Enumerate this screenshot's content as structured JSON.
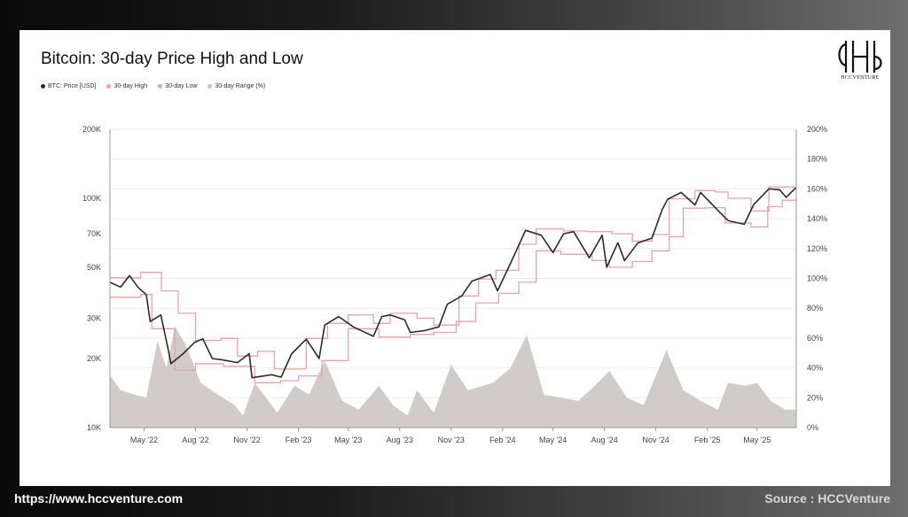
{
  "title": "Bitcoin: 30-day Price High and Low",
  "logo_text": "HCCVENTURE",
  "footer": {
    "url": "https://www.hccventure.com",
    "source": "Source : HCCVenture"
  },
  "colors": {
    "price": "#2b2b2b",
    "high": "#e8a3a6",
    "low": "#e8a3a6",
    "range": "#c9c2c0"
  },
  "chart_data": {
    "type": "line",
    "title": "Bitcoin: 30-day Price High and Low",
    "legend_placement": "top-left",
    "grid": true,
    "legend": [
      {
        "label": "BTC: Price [USD]",
        "color": "#2b2b2b"
      },
      {
        "label": "30-day High",
        "color": "#e8a3a6"
      },
      {
        "label": "30-day Low",
        "color": "#e8a3a6"
      },
      {
        "label": "30-day Range (%)",
        "color": "#c9c2c0"
      }
    ],
    "y_left": {
      "scale": "log",
      "ticks": [
        10000,
        20000,
        30000,
        50000,
        70000,
        100000,
        200000
      ],
      "tick_labels": [
        "10K",
        "20K",
        "30K",
        "50K",
        "70K",
        "100K",
        "200K"
      ],
      "range": [
        10000,
        200000
      ]
    },
    "y_right": {
      "scale": "linear",
      "ticks": [
        0,
        20,
        40,
        60,
        80,
        100,
        120,
        140,
        160,
        180,
        200
      ],
      "tick_labels": [
        "0%",
        "20%",
        "40%",
        "60%",
        "80%",
        "100%",
        "120%",
        "140%",
        "160%",
        "180%",
        "200%"
      ],
      "range": [
        0,
        200
      ]
    },
    "x_range": [
      "2022-03-01",
      "2025-07-10"
    ],
    "x_ticks": [
      {
        "date": "2022-05-01",
        "label": "May '22"
      },
      {
        "date": "2022-08-01",
        "label": "Aug '22"
      },
      {
        "date": "2022-11-01",
        "label": "Nov '22"
      },
      {
        "date": "2023-02-01",
        "label": "Feb '23"
      },
      {
        "date": "2023-05-01",
        "label": "May '23"
      },
      {
        "date": "2023-08-01",
        "label": "Aug '23"
      },
      {
        "date": "2023-11-01",
        "label": "Nov '23"
      },
      {
        "date": "2024-02-01",
        "label": "Feb '24"
      },
      {
        "date": "2024-05-01",
        "label": "May '24"
      },
      {
        "date": "2024-08-01",
        "label": "Aug '24"
      },
      {
        "date": "2024-11-01",
        "label": "Nov '24"
      },
      {
        "date": "2025-02-01",
        "label": "Feb '25"
      },
      {
        "date": "2025-05-01",
        "label": "May '25"
      }
    ],
    "series": [
      {
        "name": "BTC: Price [USD]",
        "axis": "left",
        "points": [
          [
            "2022-03-01",
            43000
          ],
          [
            "2022-03-20",
            41000
          ],
          [
            "2022-04-05",
            46000
          ],
          [
            "2022-04-20",
            41000
          ],
          [
            "2022-05-05",
            38000
          ],
          [
            "2022-05-12",
            29000
          ],
          [
            "2022-05-31",
            31000
          ],
          [
            "2022-06-13",
            22000
          ],
          [
            "2022-06-18",
            19000
          ],
          [
            "2022-07-10",
            21000
          ],
          [
            "2022-07-30",
            23500
          ],
          [
            "2022-08-14",
            24400
          ],
          [
            "2022-08-31",
            20000
          ],
          [
            "2022-09-15",
            19800
          ],
          [
            "2022-10-15",
            19200
          ],
          [
            "2022-11-05",
            21000
          ],
          [
            "2022-11-10",
            16500
          ],
          [
            "2022-12-15",
            17000
          ],
          [
            "2023-01-01",
            16600
          ],
          [
            "2023-01-20",
            21000
          ],
          [
            "2023-02-15",
            24300
          ],
          [
            "2023-03-10",
            20000
          ],
          [
            "2023-03-20",
            28000
          ],
          [
            "2023-04-14",
            30500
          ],
          [
            "2023-05-10",
            27500
          ],
          [
            "2023-06-15",
            25000
          ],
          [
            "2023-06-30",
            30500
          ],
          [
            "2023-07-15",
            31000
          ],
          [
            "2023-08-10",
            29500
          ],
          [
            "2023-08-20",
            26000
          ],
          [
            "2023-09-15",
            26500
          ],
          [
            "2023-10-10",
            27500
          ],
          [
            "2023-10-25",
            34500
          ],
          [
            "2023-11-20",
            37500
          ],
          [
            "2023-12-08",
            43500
          ],
          [
            "2024-01-10",
            46500
          ],
          [
            "2024-01-23",
            39500
          ],
          [
            "2024-02-15",
            52000
          ],
          [
            "2024-03-13",
            72500
          ],
          [
            "2024-04-10",
            69000
          ],
          [
            "2024-05-01",
            58000
          ],
          [
            "2024-05-20",
            70000
          ],
          [
            "2024-06-07",
            71500
          ],
          [
            "2024-07-05",
            55000
          ],
          [
            "2024-07-28",
            69000
          ],
          [
            "2024-08-05",
            50000
          ],
          [
            "2024-08-25",
            64000
          ],
          [
            "2024-09-06",
            53500
          ],
          [
            "2024-09-30",
            64000
          ],
          [
            "2024-10-25",
            67000
          ],
          [
            "2024-11-12",
            89000
          ],
          [
            "2024-11-22",
            99000
          ],
          [
            "2024-12-16",
            106000
          ],
          [
            "2025-01-10",
            93500
          ],
          [
            "2025-01-20",
            106000
          ],
          [
            "2025-02-25",
            86000
          ],
          [
            "2025-03-10",
            80000
          ],
          [
            "2025-04-08",
            77000
          ],
          [
            "2025-04-25",
            94000
          ],
          [
            "2025-05-22",
            110000
          ],
          [
            "2025-06-10",
            109000
          ],
          [
            "2025-06-22",
            101000
          ],
          [
            "2025-07-09",
            111000
          ]
        ]
      },
      {
        "name": "30-day High",
        "axis": "left",
        "points": [
          [
            "2022-03-01",
            45000
          ],
          [
            "2022-04-25",
            47500
          ],
          [
            "2022-06-01",
            39500
          ],
          [
            "2022-07-01",
            31500
          ],
          [
            "2022-08-01",
            24000
          ],
          [
            "2022-09-15",
            24500
          ],
          [
            "2022-10-15",
            20500
          ],
          [
            "2022-11-20",
            21500
          ],
          [
            "2022-12-20",
            18000
          ],
          [
            "2023-02-15",
            24500
          ],
          [
            "2023-03-25",
            28500
          ],
          [
            "2023-05-01",
            31000
          ],
          [
            "2023-06-15",
            28500
          ],
          [
            "2023-07-15",
            31500
          ],
          [
            "2023-09-01",
            30000
          ],
          [
            "2023-10-01",
            28000
          ],
          [
            "2023-11-15",
            37500
          ],
          [
            "2023-12-20",
            44500
          ],
          [
            "2024-01-20",
            48500
          ],
          [
            "2024-03-01",
            63000
          ],
          [
            "2024-04-01",
            73500
          ],
          [
            "2024-05-20",
            72000
          ],
          [
            "2024-07-01",
            71500
          ],
          [
            "2024-08-15",
            70000
          ],
          [
            "2024-09-20",
            65000
          ],
          [
            "2024-10-25",
            69500
          ],
          [
            "2024-11-25",
            99500
          ],
          [
            "2025-01-10",
            108000
          ],
          [
            "2025-02-15",
            106500
          ],
          [
            "2025-03-10",
            100000
          ],
          [
            "2025-04-20",
            88000
          ],
          [
            "2025-05-22",
            112000
          ],
          [
            "2025-07-09",
            112000
          ]
        ]
      },
      {
        "name": "30-day Low",
        "axis": "left",
        "points": [
          [
            "2022-03-01",
            37000
          ],
          [
            "2022-04-25",
            38000
          ],
          [
            "2022-05-15",
            27000
          ],
          [
            "2022-06-25",
            17800
          ],
          [
            "2022-08-01",
            19000
          ],
          [
            "2022-09-20",
            18500
          ],
          [
            "2022-11-15",
            15700
          ],
          [
            "2022-12-31",
            16000
          ],
          [
            "2023-02-01",
            16800
          ],
          [
            "2023-03-15",
            19600
          ],
          [
            "2023-05-01",
            27000
          ],
          [
            "2023-06-25",
            24800
          ],
          [
            "2023-08-20",
            25500
          ],
          [
            "2023-10-01",
            26000
          ],
          [
            "2023-11-10",
            29000
          ],
          [
            "2023-12-15",
            35000
          ],
          [
            "2024-01-25",
            38500
          ],
          [
            "2024-03-01",
            43000
          ],
          [
            "2024-04-01",
            59000
          ],
          [
            "2024-05-15",
            57000
          ],
          [
            "2024-07-10",
            53500
          ],
          [
            "2024-08-10",
            50000
          ],
          [
            "2024-09-20",
            53000
          ],
          [
            "2024-10-25",
            59000
          ],
          [
            "2024-11-25",
            68000
          ],
          [
            "2024-12-20",
            90500
          ],
          [
            "2025-01-30",
            91000
          ],
          [
            "2025-03-05",
            78000
          ],
          [
            "2025-04-20",
            75000
          ],
          [
            "2025-05-20",
            92000
          ],
          [
            "2025-06-15",
            98000
          ],
          [
            "2025-07-09",
            98500
          ]
        ]
      },
      {
        "name": "30-day Range (%)",
        "axis": "right",
        "style": "area",
        "points": [
          [
            "2022-03-01",
            35
          ],
          [
            "2022-03-20",
            25
          ],
          [
            "2022-04-15",
            22
          ],
          [
            "2022-05-05",
            20
          ],
          [
            "2022-05-25",
            58
          ],
          [
            "2022-06-10",
            40
          ],
          [
            "2022-06-25",
            68
          ],
          [
            "2022-07-15",
            55
          ],
          [
            "2022-08-10",
            30
          ],
          [
            "2022-09-10",
            22
          ],
          [
            "2022-10-10",
            15
          ],
          [
            "2022-10-25",
            8
          ],
          [
            "2022-11-15",
            30
          ],
          [
            "2022-12-05",
            20
          ],
          [
            "2022-12-25",
            10
          ],
          [
            "2023-01-25",
            28
          ],
          [
            "2023-02-20",
            22
          ],
          [
            "2023-03-20",
            45
          ],
          [
            "2023-04-20",
            18
          ],
          [
            "2023-05-20",
            12
          ],
          [
            "2023-06-25",
            28
          ],
          [
            "2023-07-20",
            15
          ],
          [
            "2023-08-15",
            8
          ],
          [
            "2023-09-01",
            25
          ],
          [
            "2023-10-01",
            10
          ],
          [
            "2023-11-01",
            42
          ],
          [
            "2023-12-01",
            25
          ],
          [
            "2024-01-15",
            30
          ],
          [
            "2024-02-15",
            40
          ],
          [
            "2024-03-15",
            62
          ],
          [
            "2024-04-15",
            22
          ],
          [
            "2024-05-15",
            20
          ],
          [
            "2024-06-15",
            18
          ],
          [
            "2024-07-15",
            28
          ],
          [
            "2024-08-10",
            38
          ],
          [
            "2024-09-10",
            20
          ],
          [
            "2024-10-10",
            15
          ],
          [
            "2024-11-20",
            52
          ],
          [
            "2024-12-20",
            25
          ],
          [
            "2025-01-20",
            18
          ],
          [
            "2025-02-20",
            12
          ],
          [
            "2025-03-10",
            30
          ],
          [
            "2025-04-10",
            28
          ],
          [
            "2025-05-01",
            30
          ],
          [
            "2025-05-25",
            18
          ],
          [
            "2025-06-20",
            12
          ],
          [
            "2025-07-09",
            12
          ]
        ]
      }
    ]
  }
}
